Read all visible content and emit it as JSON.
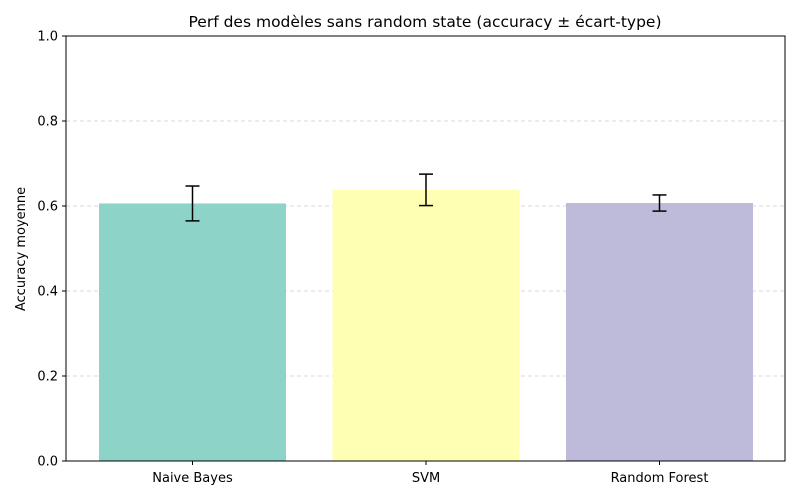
{
  "chart_data": {
    "type": "bar",
    "title": "Perf des modèles sans random state (accuracy ± écart-type)",
    "xlabel": "",
    "ylabel": "Accuracy moyenne",
    "categories": [
      "Naive Bayes",
      "SVM",
      "Random Forest"
    ],
    "values": [
      0.606,
      0.638,
      0.607
    ],
    "errors": [
      0.041,
      0.037,
      0.019
    ],
    "colors": [
      "#8dd3c7",
      "#ffffb3",
      "#bebada"
    ],
    "ylim": [
      0,
      1.0
    ],
    "yticks": [
      0.0,
      0.2,
      0.4,
      0.6,
      0.8,
      1.0
    ],
    "ytick_labels": [
      "0.0",
      "0.2",
      "0.4",
      "0.6",
      "0.8",
      "1.0"
    ],
    "grid": "y-dashed",
    "legend": "none"
  }
}
